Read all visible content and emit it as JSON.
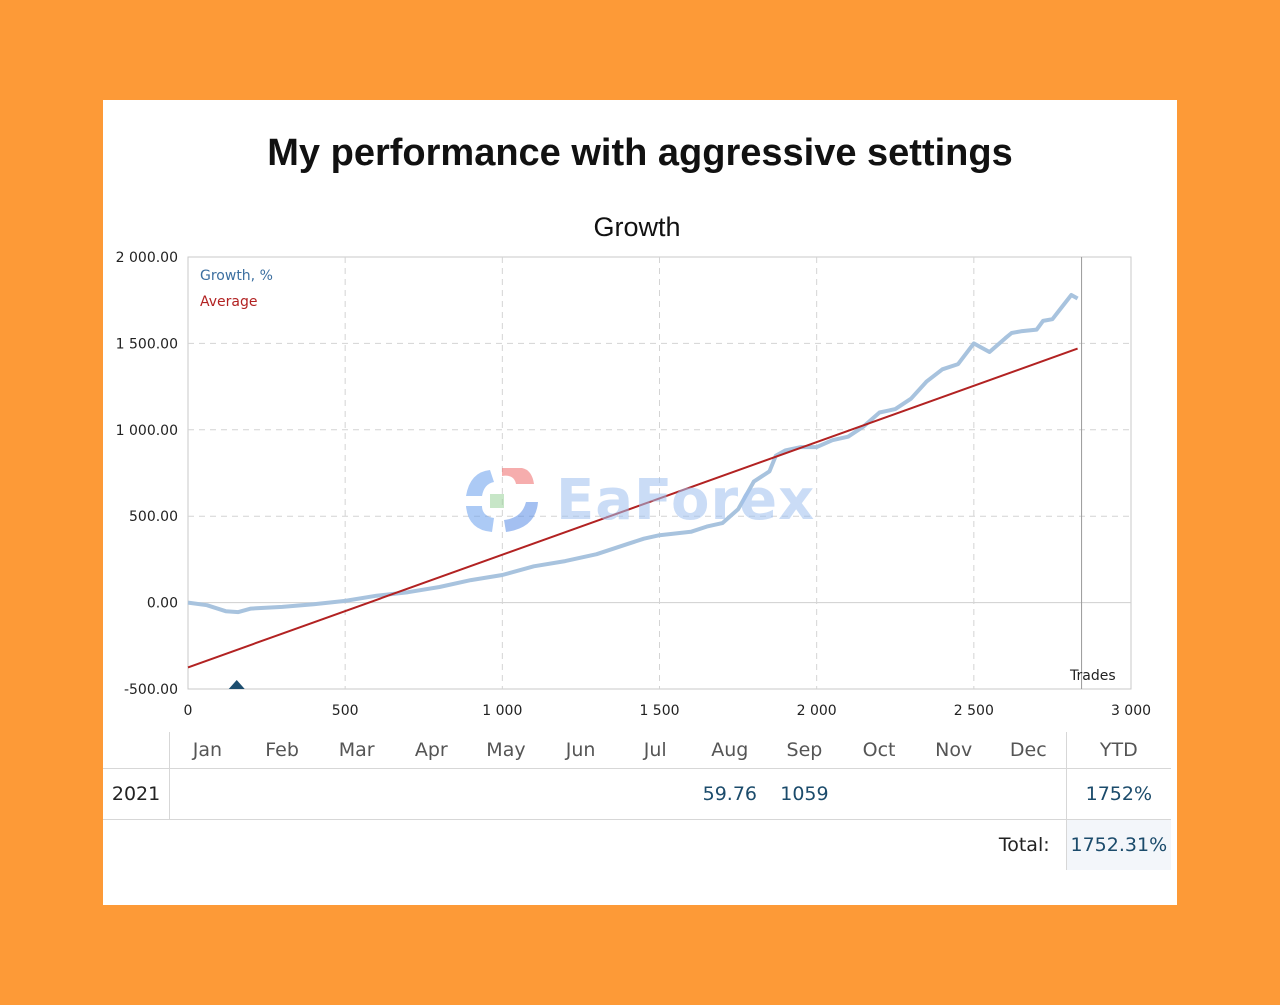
{
  "title": "My performance with aggressive settings",
  "chart_data": {
    "type": "line",
    "title": "Growth",
    "xlabel": "Trades",
    "ylabel": "",
    "xlim": [
      0,
      3000
    ],
    "ylim": [
      -500,
      2000
    ],
    "x_ticks": [
      "0",
      "500",
      "1 000",
      "1 500",
      "2 000",
      "2 500",
      "3 000"
    ],
    "y_ticks": [
      "2 000.00",
      "1 500.00",
      "1 000.00",
      "500.00",
      "0.00",
      "-500.00"
    ],
    "grid": true,
    "legend_position": "top-left",
    "series": [
      {
        "name": "Growth, %",
        "color": "#a8c3de",
        "x": [
          0,
          60,
          120,
          160,
          200,
          300,
          400,
          500,
          600,
          700,
          800,
          900,
          1000,
          1100,
          1200,
          1300,
          1400,
          1450,
          1500,
          1550,
          1600,
          1650,
          1700,
          1750,
          1800,
          1850,
          1870,
          1900,
          1950,
          2000,
          2050,
          2100,
          2150,
          2200,
          2250,
          2300,
          2350,
          2400,
          2450,
          2500,
          2520,
          2550,
          2600,
          2620,
          2650,
          2700,
          2720,
          2750,
          2780,
          2810,
          2830
        ],
        "y": [
          0,
          -15,
          -50,
          -55,
          -35,
          -25,
          -10,
          10,
          40,
          60,
          90,
          130,
          160,
          210,
          240,
          280,
          340,
          370,
          390,
          400,
          410,
          440,
          460,
          540,
          700,
          760,
          850,
          880,
          900,
          900,
          940,
          960,
          1020,
          1100,
          1120,
          1180,
          1280,
          1350,
          1380,
          1500,
          1480,
          1450,
          1530,
          1560,
          1570,
          1580,
          1630,
          1640,
          1710,
          1780,
          1760
        ]
      },
      {
        "name": "Average",
        "color": "#b22222",
        "x": [
          0,
          2830
        ],
        "y": [
          -375,
          1470
        ]
      }
    ],
    "marker": {
      "x": 155,
      "y": -500,
      "color": "#1d4e6f"
    }
  },
  "watermark": "EaForex",
  "table": {
    "months": [
      "Jan",
      "Feb",
      "Mar",
      "Apr",
      "May",
      "Jun",
      "Jul",
      "Aug",
      "Sep",
      "Oct",
      "Nov",
      "Dec"
    ],
    "ytd_label": "YTD",
    "rows": [
      {
        "year": "2021",
        "values": [
          "",
          "",
          "",
          "",
          "",
          "",
          "",
          "59.76",
          "1059",
          "",
          "",
          ""
        ],
        "ytd": "1752%"
      }
    ],
    "total_label": "Total:",
    "total_value": "1752.31%"
  }
}
